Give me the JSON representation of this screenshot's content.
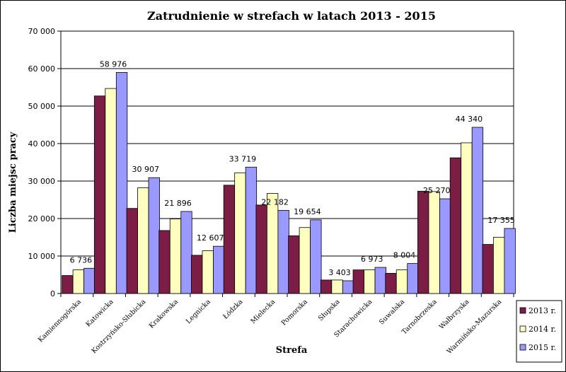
{
  "chart_data": {
    "type": "bar",
    "title": "Zatrudnienie w strefach w latach 2013 - 2015",
    "xlabel": "Strefa",
    "ylabel": "Liczba miejsc pracy",
    "ylim": [
      0,
      70000
    ],
    "yticks": [
      "0",
      "10 000",
      "20 000",
      "30 000",
      "40 000",
      "50 000",
      "60 000",
      "70 000"
    ],
    "grid": true,
    "legend_position": "bottom-right",
    "categories": [
      "Kamiennogórska",
      "Katowicka",
      "Kostrzyńsko-Słubicka",
      "Krakowska",
      "Legnicka",
      "Łódzka",
      "Mielecka",
      "Pomorska",
      "Słupska",
      "Starachowicka",
      "Suwalska",
      "Tarnobrzeska",
      "Wałbrzyska",
      "Warmińsko-Mazurska"
    ],
    "series": [
      {
        "name": "2013 r.",
        "color": "#7b1d45",
        "values": [
          4800,
          52700,
          22700,
          16800,
          10200,
          28900,
          23600,
          15400,
          3600,
          6300,
          5400,
          27300,
          36200,
          13100
        ]
      },
      {
        "name": "2014 r.",
        "color": "#ffffc0",
        "values": [
          6300,
          54700,
          28200,
          19900,
          11400,
          32200,
          26700,
          17600,
          3600,
          6300,
          6300,
          27200,
          40200,
          15000
        ]
      },
      {
        "name": "2015 r.",
        "color": "#9999ff",
        "values": [
          6736,
          58976,
          30907,
          21896,
          12607,
          33719,
          22182,
          19654,
          3403,
          6973,
          8004,
          25270,
          44340,
          17355
        ]
      }
    ],
    "data_labels": [
      "6 736",
      "58 976",
      "30 907",
      "21 896",
      "12 607",
      "33 719",
      "22 182",
      "19 654",
      "3 403",
      "6 973",
      "8 004",
      "25 270",
      "44 340",
      "17 355"
    ]
  }
}
